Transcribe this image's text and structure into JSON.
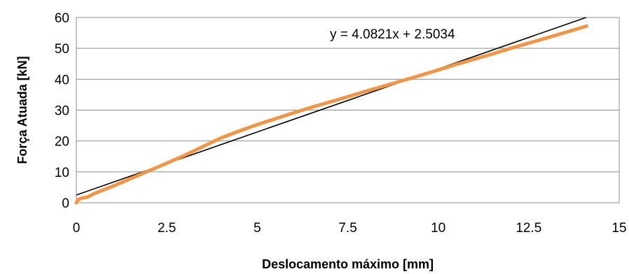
{
  "chart_data": {
    "type": "scatter",
    "xlabel": "Deslocamento máximo [mm]",
    "ylabel": "Força Atuada [kN]",
    "xlim": [
      0,
      15
    ],
    "ylim": [
      0,
      60
    ],
    "x_ticks": [
      "0",
      "2.5",
      "5",
      "7.5",
      "10",
      "12.5",
      "15"
    ],
    "y_ticks": [
      "0",
      "10",
      "20",
      "30",
      "40",
      "50",
      "60"
    ],
    "grid": "horizontal",
    "legend": "none",
    "series": [
      {
        "color": "#f0964a",
        "x": [
          0,
          0.05,
          0.15,
          0.3,
          0.5,
          1.0,
          1.5,
          2.0,
          2.5,
          3.0,
          3.5,
          4.0,
          4.5,
          5.0,
          5.5,
          6.0,
          6.5,
          7.0,
          7.5,
          8.0,
          8.5,
          9.0,
          9.5,
          10.0,
          10.5,
          11.0,
          11.5,
          12.0,
          12.5,
          13.0,
          13.5,
          14.1
        ],
        "y": [
          0,
          1.0,
          1.5,
          1.8,
          3.0,
          5.3,
          7.8,
          10.3,
          12.8,
          15.4,
          18.2,
          21.0,
          23.2,
          25.3,
          27.2,
          29.1,
          30.9,
          32.6,
          34.3,
          36.1,
          37.8,
          39.5,
          41.2,
          43.0,
          44.8,
          46.5,
          48.2,
          50.0,
          51.7,
          53.4,
          55.1,
          57.2
        ]
      }
    ],
    "trendline": {
      "color": "#000000",
      "slope": 4.0821,
      "intercept": 2.5034,
      "label": "y = 4.0821x + 2.5034"
    }
  }
}
